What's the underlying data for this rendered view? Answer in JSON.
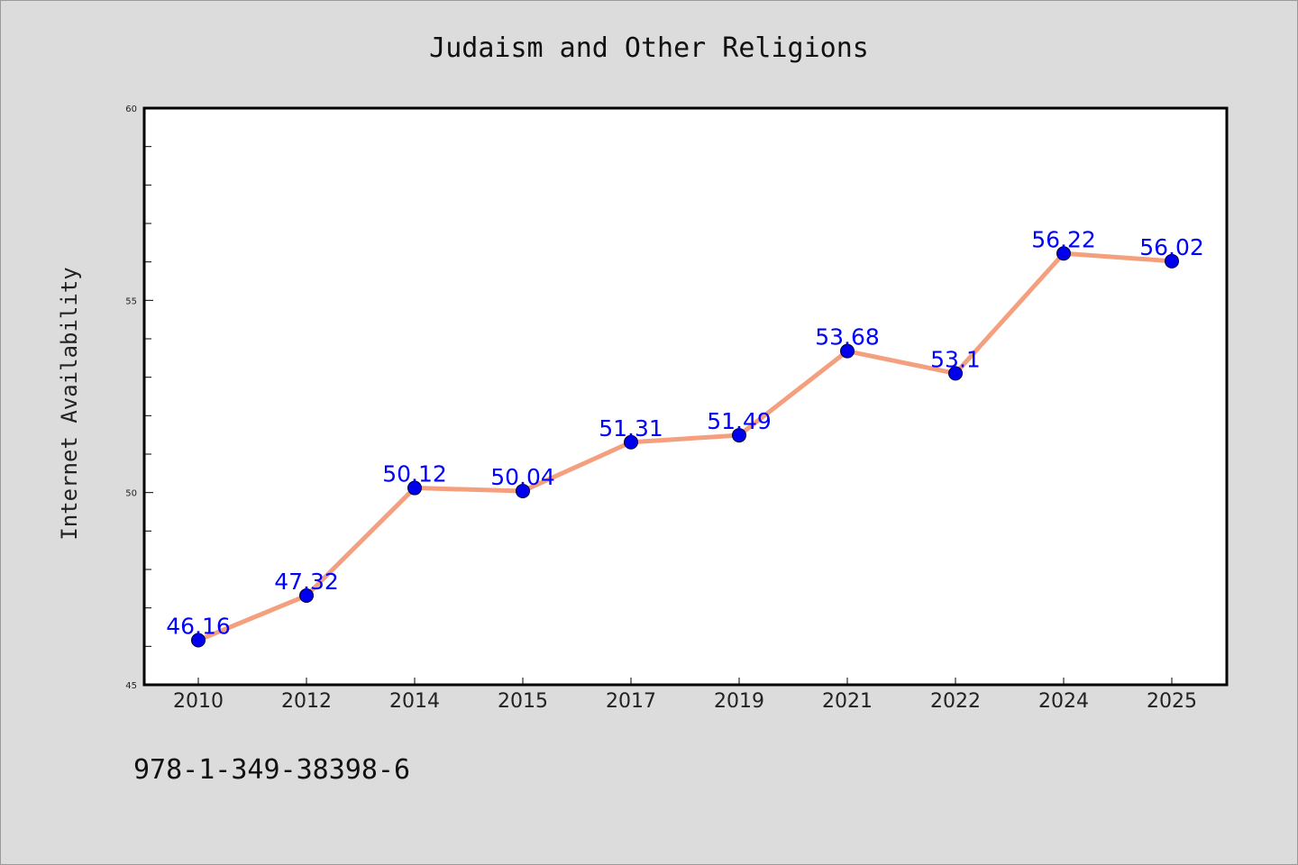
{
  "chart_data": {
    "type": "line",
    "title": "Judaism and Other Religions",
    "xlabel": "",
    "ylabel": "Internet Availability",
    "categories": [
      "2010",
      "2012",
      "2014",
      "2015",
      "2017",
      "2019",
      "2021",
      "2022",
      "2024",
      "2025"
    ],
    "series": [
      {
        "values": [
          46.16,
          47.32,
          50.12,
          50.04,
          51.31,
          51.49,
          53.68,
          53.1,
          56.22,
          56.02
        ],
        "value_labels": [
          "46.16",
          "47.32",
          "50.12",
          "50.04",
          "51.31",
          "51.49",
          "53.68",
          "53.1",
          "56.22",
          "56.02"
        ],
        "line_color": "#f4a07f",
        "marker_color": "#0000ee",
        "label_color": "#0000ff"
      }
    ],
    "ylim": [
      45,
      60
    ],
    "yticks": [
      "45",
      "50",
      "55",
      "60"
    ],
    "grid": false,
    "legend": "none"
  },
  "annotation": {
    "isbn": "978-1-349-38398-6"
  },
  "colors": {
    "background": "#dcdcdc",
    "plot_background": "#ffffff",
    "axis": "#000000"
  }
}
